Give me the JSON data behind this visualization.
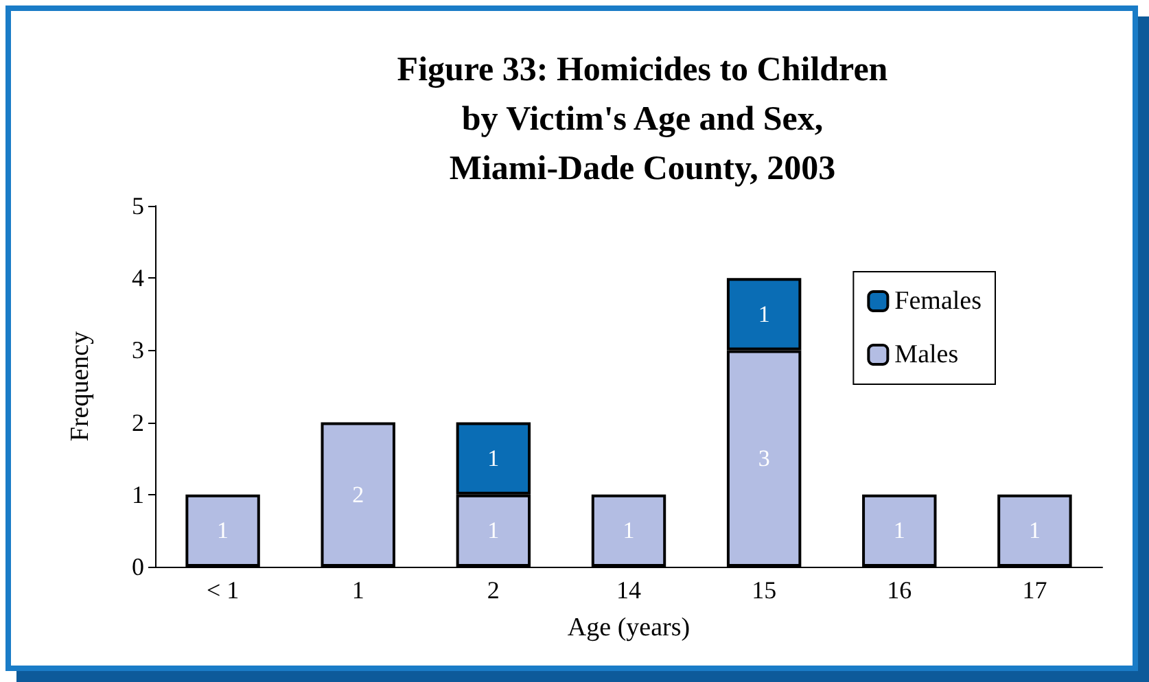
{
  "chart_data": {
    "type": "bar",
    "title": "Figure 33: Homicides to Children\nby Victim's Age and Sex,\nMiami-Dade County, 2003",
    "xlabel": "Age (years)",
    "ylabel": "Frequency",
    "categories": [
      "< 1",
      "1",
      "2",
      "14",
      "15",
      "16",
      "17"
    ],
    "series": [
      {
        "name": "Males",
        "color": "#b3bde3",
        "values": [
          1,
          2,
          1,
          1,
          3,
          1,
          1
        ]
      },
      {
        "name": "Females",
        "color": "#0a6db5",
        "values": [
          null,
          null,
          1,
          null,
          1,
          null,
          null
        ]
      }
    ],
    "stacked": true,
    "ylim": [
      0,
      5
    ],
    "yticks": [
      0,
      1,
      2,
      3,
      4,
      5
    ],
    "grid": false,
    "legend": "top right",
    "data_labels": true
  }
}
